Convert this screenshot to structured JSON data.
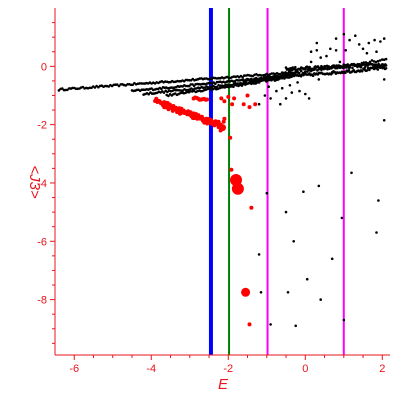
{
  "chart_data": {
    "type": "scatter",
    "title": "",
    "xlabel": "E",
    "ylabel": "<J3>",
    "xlim": [
      -6.5,
      2.2
    ],
    "ylim": [
      -9.9,
      2.0
    ],
    "xticks": [
      -6,
      -4,
      -2,
      0,
      2
    ],
    "yticks": [
      0,
      -2,
      -4,
      -6,
      -8
    ],
    "grid": false,
    "legend": "none",
    "colors": {
      "axis": "#e8141c",
      "black_points": "#000000",
      "red_points": "#ff0000",
      "blue_line": "#0000ff",
      "green_line": "#008000",
      "magenta_line": "#ff00ff"
    },
    "vertical_lines": [
      {
        "x": -2.45,
        "color": "#0000ff",
        "width": 4
      },
      {
        "x": -1.98,
        "color": "#008000",
        "width": 2
      },
      {
        "x": -0.98,
        "color": "#ff00ff",
        "width": 2
      },
      {
        "x": 1.0,
        "color": "#ff00ff",
        "width": 2
      }
    ],
    "series": [
      {
        "marker_color": "#000000",
        "marker_size": 1.3,
        "bands": [
          {
            "from": [
              -6.4,
              -0.8
            ],
            "to": [
              -0.2,
              -0.2
            ],
            "n": 140,
            "jitter": 0.03
          },
          {
            "from": [
              -4.5,
              -0.85
            ],
            "to": [
              -0.3,
              -0.3
            ],
            "n": 100,
            "jitter": 0.03
          },
          {
            "from": [
              -4.2,
              -0.95
            ],
            "to": [
              -0.7,
              -0.45
            ],
            "n": 80,
            "jitter": 0.03
          },
          {
            "from": [
              -3.6,
              -1.0
            ],
            "to": [
              -1.2,
              -0.55
            ],
            "n": 55,
            "jitter": 0.03
          },
          {
            "from": [
              -1.6,
              -0.5
            ],
            "to": [
              2.1,
              -0.05
            ],
            "n": 120,
            "jitter": 0.05
          },
          {
            "from": [
              -0.5,
              -0.1
            ],
            "to": [
              2.1,
              0.05
            ],
            "n": 120,
            "jitter": 0.06
          },
          {
            "from": [
              -1.0,
              -0.4
            ],
            "to": [
              2.1,
              0.25
            ],
            "n": 60,
            "jitter": 0.05
          }
        ],
        "points": [
          [
            -0.3,
            -0.3
          ],
          [
            0.15,
            0.5
          ],
          [
            0.3,
            0.55
          ],
          [
            0.4,
            0.3
          ],
          [
            0.65,
            0.6
          ],
          [
            0.8,
            0.55
          ],
          [
            1.05,
            0.55
          ],
          [
            1.15,
            0.9
          ],
          [
            1.3,
            1.05
          ],
          [
            1.4,
            0.75
          ],
          [
            1.5,
            0.6
          ],
          [
            1.65,
            0.8
          ],
          [
            1.8,
            0.9
          ],
          [
            1.95,
            0.85
          ],
          [
            2.05,
            0.95
          ],
          [
            1.0,
            1.1
          ],
          [
            0.3,
            0.8
          ],
          [
            0.55,
            0.35
          ],
          [
            0.8,
            0.95
          ],
          [
            1.6,
            0.45
          ],
          [
            1.85,
            0.5
          ],
          [
            0.15,
            0.15
          ],
          [
            0.5,
            0.0
          ],
          [
            0.9,
            0.15
          ],
          [
            -0.4,
            -0.65
          ],
          [
            -0.35,
            -0.9
          ],
          [
            -0.15,
            -0.85
          ],
          [
            0.0,
            -0.95
          ],
          [
            0.1,
            -1.1
          ],
          [
            -0.6,
            -0.75
          ],
          [
            -0.75,
            -0.85
          ],
          [
            -0.5,
            -1.1
          ],
          [
            -0.65,
            -1.3
          ],
          [
            -0.9,
            -1.1
          ],
          [
            -1.05,
            -1.0
          ],
          [
            -1.2,
            -1.3
          ],
          [
            -0.95,
            -0.7
          ],
          [
            -1.4,
            -0.6
          ],
          [
            -0.2,
            -0.55
          ],
          [
            0.35,
            -0.45
          ],
          [
            0.7,
            -0.2
          ],
          [
            1.1,
            -0.15
          ],
          [
            2.05,
            -1.85
          ],
          [
            2.05,
            -0.45
          ],
          [
            -1.0,
            -4.35
          ],
          [
            -0.05,
            -4.3
          ],
          [
            0.35,
            -4.1
          ],
          [
            1.2,
            -3.65
          ],
          [
            1.9,
            -4.6
          ],
          [
            -0.5,
            -5.0
          ],
          [
            0.95,
            -5.2
          ],
          [
            1.85,
            -5.7
          ],
          [
            -1.2,
            -6.45
          ],
          [
            -0.3,
            -6.0
          ],
          [
            0.7,
            -6.6
          ],
          [
            0.05,
            -7.3
          ],
          [
            -1.15,
            -7.75
          ],
          [
            -0.45,
            -7.75
          ],
          [
            0.4,
            -8.0
          ],
          [
            -0.9,
            -8.85
          ],
          [
            -0.25,
            -8.9
          ],
          [
            1.0,
            -8.7
          ]
        ]
      },
      {
        "marker_color": "#ff0000",
        "marker_size": 2.0,
        "bands": [
          {
            "from": [
              -3.9,
              -1.15
            ],
            "to": [
              -2.3,
              -1.95
            ],
            "n": 55,
            "jitter": 0.06
          },
          {
            "from": [
              -3.7,
              -1.35
            ],
            "to": [
              -2.25,
              -2.05
            ],
            "n": 40,
            "jitter": 0.06
          },
          {
            "from": [
              -2.9,
              -1.1
            ],
            "to": [
              -2.55,
              -1.15
            ],
            "n": 10,
            "jitter": 0.04
          }
        ],
        "points": [
          [
            -2.2,
            -2.0
          ],
          [
            -2.15,
            -2.1
          ],
          [
            -2.2,
            -2.2
          ],
          [
            -2.12,
            -1.9
          ],
          [
            -2.25,
            -1.9
          ],
          [
            -2.1,
            -1.8
          ],
          [
            -2.18,
            -1.1
          ],
          [
            -2.1,
            -1.2
          ],
          [
            -2.0,
            -1.05
          ],
          [
            -1.9,
            -1.3
          ],
          [
            -1.85,
            -1.1
          ],
          [
            -1.6,
            -1.3
          ],
          [
            -1.45,
            -1.4
          ],
          [
            -1.3,
            -1.3
          ],
          [
            -1.5,
            -1.0
          ],
          [
            -1.95,
            -2.45
          ],
          [
            -1.92,
            -3.55
          ],
          [
            -1.4,
            -4.85
          ],
          [
            -1.45,
            -8.85
          ]
        ],
        "blobs": [
          [
            -2.15,
            -2.1,
            3.5
          ],
          [
            -1.8,
            -3.9,
            6
          ],
          [
            -1.75,
            -4.2,
            6
          ],
          [
            -1.55,
            -7.75,
            4.5
          ]
        ]
      }
    ]
  }
}
